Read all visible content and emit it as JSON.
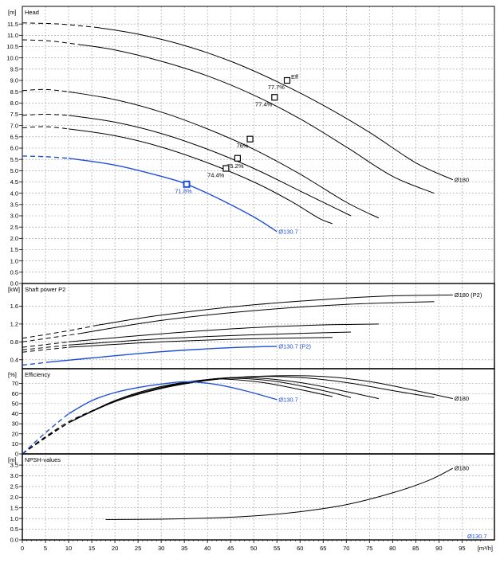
{
  "colors": {
    "black": "#000000",
    "blue": "#1f4fd6",
    "grid": "#9a9a9a"
  },
  "x_axis": {
    "unit": "[m³/h]",
    "ticks": [
      0,
      5,
      10,
      15,
      20,
      25,
      30,
      35,
      40,
      45,
      50,
      55,
      60,
      65,
      70,
      75,
      80,
      85,
      90,
      95
    ],
    "range": [
      0,
      102
    ]
  },
  "chart_data": [
    {
      "type": "line",
      "title": "Head",
      "unit": "[m]",
      "ylim": [
        0,
        12
      ],
      "yticks": [
        "0.0",
        "0.5",
        "1.0",
        "1.5",
        "2.0",
        "2.5",
        "3.0",
        "3.5",
        "4.0",
        "4.5",
        "5.0",
        "5.5",
        "6.0",
        "6.5",
        "7.0",
        "7.5",
        "8.0",
        "8.5",
        "9.0",
        "9.5",
        "10.0",
        "10.5",
        "11.0",
        "11.5"
      ],
      "ytick_values": [
        0,
        0.5,
        1,
        1.5,
        2,
        2.5,
        3,
        3.5,
        4,
        4.5,
        5,
        5.5,
        6,
        6.5,
        7,
        7.5,
        8,
        8.5,
        9,
        9.5,
        10,
        10.5,
        11,
        11.5
      ],
      "series": [
        {
          "name": "Ø180",
          "color": "black",
          "label": "Ø180",
          "dashed_until": 16,
          "points": [
            [
              0,
              11.55
            ],
            [
              8,
              11.5
            ],
            [
              16,
              11.35
            ],
            [
              25,
              11.05
            ],
            [
              35,
              10.55
            ],
            [
              45,
              9.85
            ],
            [
              55,
              8.95
            ],
            [
              65,
              7.9
            ],
            [
              75,
              6.7
            ],
            [
              85,
              5.35
            ],
            [
              93,
              4.6
            ]
          ]
        },
        {
          "name": "",
          "color": "black",
          "dashed_until": 12,
          "points": [
            [
              0,
              10.8
            ],
            [
              6,
              10.75
            ],
            [
              12,
              10.6
            ],
            [
              20,
              10.35
            ],
            [
              30,
              9.85
            ],
            [
              40,
              9.2
            ],
            [
              50,
              8.35
            ],
            [
              60,
              7.3
            ],
            [
              70,
              6.05
            ],
            [
              80,
              4.75
            ],
            [
              89,
              4.0
            ]
          ]
        },
        {
          "name": "",
          "color": "black",
          "dashed_until": 10,
          "points": [
            [
              0,
              8.55
            ],
            [
              5,
              8.6
            ],
            [
              10,
              8.5
            ],
            [
              20,
              8.15
            ],
            [
              30,
              7.6
            ],
            [
              40,
              6.85
            ],
            [
              50,
              5.95
            ],
            [
              60,
              4.85
            ],
            [
              70,
              3.6
            ],
            [
              77,
              2.9
            ]
          ]
        },
        {
          "name": "",
          "color": "black",
          "dashed_until": 10,
          "points": [
            [
              0,
              7.45
            ],
            [
              5,
              7.5
            ],
            [
              10,
              7.45
            ],
            [
              20,
              7.15
            ],
            [
              30,
              6.65
            ],
            [
              40,
              5.95
            ],
            [
              50,
              5.1
            ],
            [
              60,
              4.1
            ],
            [
              67,
              3.4
            ],
            [
              71,
              3.0
            ]
          ]
        },
        {
          "name": "",
          "color": "black",
          "dashed_until": 10,
          "points": [
            [
              0,
              6.9
            ],
            [
              5,
              6.95
            ],
            [
              10,
              6.85
            ],
            [
              20,
              6.55
            ],
            [
              30,
              6.05
            ],
            [
              40,
              5.35
            ],
            [
              50,
              4.5
            ],
            [
              58,
              3.65
            ],
            [
              64,
              2.9
            ],
            [
              67,
              2.65
            ]
          ]
        },
        {
          "name": "Ø130.7",
          "color": "blue",
          "label": "Ø130.7",
          "dashed_until": 10,
          "points": [
            [
              0,
              5.65
            ],
            [
              5,
              5.62
            ],
            [
              10,
              5.55
            ],
            [
              20,
              5.25
            ],
            [
              30,
              4.75
            ],
            [
              35.5,
              4.4
            ],
            [
              42,
              3.8
            ],
            [
              50,
              2.95
            ],
            [
              55,
              2.3
            ]
          ]
        }
      ],
      "markers": [
        {
          "x": 57.2,
          "y": 9.0,
          "color": "black",
          "label": "77.7%",
          "label_dx": -3,
          "label_dy": 11,
          "anchor": "end"
        },
        {
          "x": 54.5,
          "y": 8.25,
          "color": "black",
          "label": "77.4%",
          "label_dx": -3,
          "label_dy": 11,
          "anchor": "end"
        },
        {
          "x": 49.2,
          "y": 6.4,
          "color": "black",
          "label": "76%",
          "label_dx": -2,
          "label_dy": 11,
          "anchor": "end"
        },
        {
          "x": 46.5,
          "y": 5.55,
          "color": "black",
          "label": "75.2%",
          "label_dx": -3,
          "label_dy": 12,
          "anchor": "middle"
        },
        {
          "x": 44,
          "y": 5.1,
          "color": "black",
          "label": "74.4%",
          "label_dx": -2,
          "label_dy": 11,
          "anchor": "end"
        },
        {
          "x": 35.5,
          "y": 4.4,
          "color": "blue",
          "label": "71.8%",
          "label_dx": -4,
          "label_dy": 11,
          "anchor": "middle"
        }
      ],
      "annotations": [
        {
          "text": "Eff",
          "x": 57.2,
          "y": 9.0,
          "dx": 5,
          "dy": -2
        }
      ]
    },
    {
      "type": "line",
      "title": "Shaft power P2",
      "unit": "[kW]",
      "ylim": [
        0.2,
        2.0
      ],
      "yticks": [
        "0.4",
        "0.8",
        "1.2",
        "1.6"
      ],
      "ytick_values": [
        0.4,
        0.8,
        1.2,
        1.6
      ],
      "series": [
        {
          "name": "Ø180 (P2)",
          "color": "black",
          "label": "Ø180 (P2)",
          "dashed_until": 16,
          "points": [
            [
              0,
              0.88
            ],
            [
              10,
              1.05
            ],
            [
              16,
              1.17
            ],
            [
              30,
              1.4
            ],
            [
              50,
              1.63
            ],
            [
              70,
              1.78
            ],
            [
              80,
              1.83
            ],
            [
              93,
              1.85
            ]
          ]
        },
        {
          "name": "",
          "color": "black",
          "dashed_until": 12,
          "points": [
            [
              0,
              0.8
            ],
            [
              12,
              0.98
            ],
            [
              30,
              1.28
            ],
            [
              50,
              1.5
            ],
            [
              70,
              1.64
            ],
            [
              89,
              1.7
            ]
          ]
        },
        {
          "name": "",
          "color": "black",
          "dashed_until": 10,
          "points": [
            [
              0,
              0.68
            ],
            [
              10,
              0.8
            ],
            [
              30,
              0.98
            ],
            [
              50,
              1.12
            ],
            [
              65,
              1.18
            ],
            [
              77,
              1.2
            ]
          ]
        },
        {
          "name": "",
          "color": "black",
          "dashed_until": 10,
          "points": [
            [
              0,
              0.62
            ],
            [
              10,
              0.73
            ],
            [
              30,
              0.87
            ],
            [
              50,
              0.96
            ],
            [
              71,
              1.02
            ]
          ]
        },
        {
          "name": "",
          "color": "black",
          "dashed_until": 10,
          "points": [
            [
              0,
              0.57
            ],
            [
              10,
              0.68
            ],
            [
              30,
              0.8
            ],
            [
              50,
              0.87
            ],
            [
              67,
              0.9
            ]
          ]
        },
        {
          "name": "Ø130.7 (P2)",
          "color": "blue",
          "label": "Ø130.7 (P2)",
          "dashed_until": 6,
          "points": [
            [
              0,
              0.28
            ],
            [
              6,
              0.35
            ],
            [
              15,
              0.44
            ],
            [
              30,
              0.58
            ],
            [
              45,
              0.67
            ],
            [
              55,
              0.7
            ]
          ]
        }
      ],
      "markers": [],
      "annotations": []
    },
    {
      "type": "line",
      "title": "Efficiency",
      "unit": "[%]",
      "ylim": [
        0,
        80
      ],
      "yticks": [
        "0",
        "10",
        "20",
        "30",
        "40",
        "50",
        "60",
        "70"
      ],
      "ytick_values": [
        0,
        10,
        20,
        30,
        40,
        50,
        60,
        70
      ],
      "series": [
        {
          "name": "Ø180",
          "color": "black",
          "label": "Ø180",
          "dashed_until": 16,
          "points": [
            [
              0,
              0
            ],
            [
              5,
              17
            ],
            [
              10,
              32
            ],
            [
              16,
              45
            ],
            [
              25,
              60
            ],
            [
              35,
              70
            ],
            [
              45,
              75.5
            ],
            [
              55,
              77.7
            ],
            [
              65,
              77
            ],
            [
              75,
              72
            ],
            [
              85,
              63
            ],
            [
              93,
              55
            ]
          ]
        },
        {
          "name": "",
          "color": "black",
          "dashed_until": 12,
          "points": [
            [
              0,
              0
            ],
            [
              5,
              17
            ],
            [
              12,
              36
            ],
            [
              20,
              52
            ],
            [
              30,
              65
            ],
            [
              40,
              73
            ],
            [
              50,
              77
            ],
            [
              60,
              76
            ],
            [
              70,
              71
            ],
            [
              80,
              63
            ],
            [
              89,
              56
            ]
          ]
        },
        {
          "name": "",
          "color": "black",
          "dashed_until": 10,
          "points": [
            [
              0,
              0
            ],
            [
              5,
              16
            ],
            [
              10,
              31
            ],
            [
              20,
              52
            ],
            [
              30,
              66
            ],
            [
              40,
              74
            ],
            [
              49,
              76
            ],
            [
              60,
              71
            ],
            [
              70,
              62
            ],
            [
              77,
              55
            ]
          ]
        },
        {
          "name": "",
          "color": "black",
          "dashed_until": 10,
          "points": [
            [
              0,
              0
            ],
            [
              5,
              16
            ],
            [
              10,
              31
            ],
            [
              20,
              53
            ],
            [
              30,
              67
            ],
            [
              40,
              74
            ],
            [
              46.5,
              75.2
            ],
            [
              55,
              72
            ],
            [
              65,
              63
            ],
            [
              71,
              56
            ]
          ]
        },
        {
          "name": "",
          "color": "black",
          "dashed_until": 10,
          "points": [
            [
              0,
              0
            ],
            [
              5,
              16
            ],
            [
              10,
              31
            ],
            [
              20,
              53
            ],
            [
              30,
              67
            ],
            [
              40,
              73.5
            ],
            [
              44,
              74.4
            ],
            [
              52,
              71
            ],
            [
              60,
              64
            ],
            [
              67,
              57
            ]
          ]
        },
        {
          "name": "Ø130.7",
          "color": "blue",
          "label": "Ø130.7",
          "dashed_until": 10,
          "points": [
            [
              0,
              0
            ],
            [
              5,
              21
            ],
            [
              10,
              40
            ],
            [
              15,
              53
            ],
            [
              20,
              61
            ],
            [
              25,
              66
            ],
            [
              30,
              69.5
            ],
            [
              35.5,
              71.8
            ],
            [
              42,
              69
            ],
            [
              48,
              63
            ],
            [
              55,
              54
            ]
          ]
        }
      ],
      "markers": [],
      "annotations": []
    },
    {
      "type": "line",
      "title": "NPSH-values",
      "unit": "[m]",
      "ylim": [
        0,
        3.8
      ],
      "yticks": [
        "0.0",
        "0.5",
        "1.0",
        "1.5",
        "2.0",
        "2.5",
        "3.0",
        "3.5"
      ],
      "ytick_values": [
        0,
        0.5,
        1,
        1.5,
        2,
        2.5,
        3,
        3.5
      ],
      "series": [
        {
          "name": "Ø180",
          "color": "black",
          "label": "Ø180",
          "dashed_until": 0,
          "points": [
            [
              18,
              0.95
            ],
            [
              30,
              0.97
            ],
            [
              40,
              1.02
            ],
            [
              50,
              1.12
            ],
            [
              60,
              1.32
            ],
            [
              70,
              1.65
            ],
            [
              80,
              2.2
            ],
            [
              88,
              2.8
            ],
            [
              93,
              3.35
            ]
          ]
        },
        {
          "name": "Ø130.7",
          "color": "blue",
          "label": "Ø130.7",
          "dashed_until": 0,
          "points": [
            [
              97,
              0
            ]
          ]
        }
      ],
      "markers": [],
      "annotations": []
    }
  ]
}
